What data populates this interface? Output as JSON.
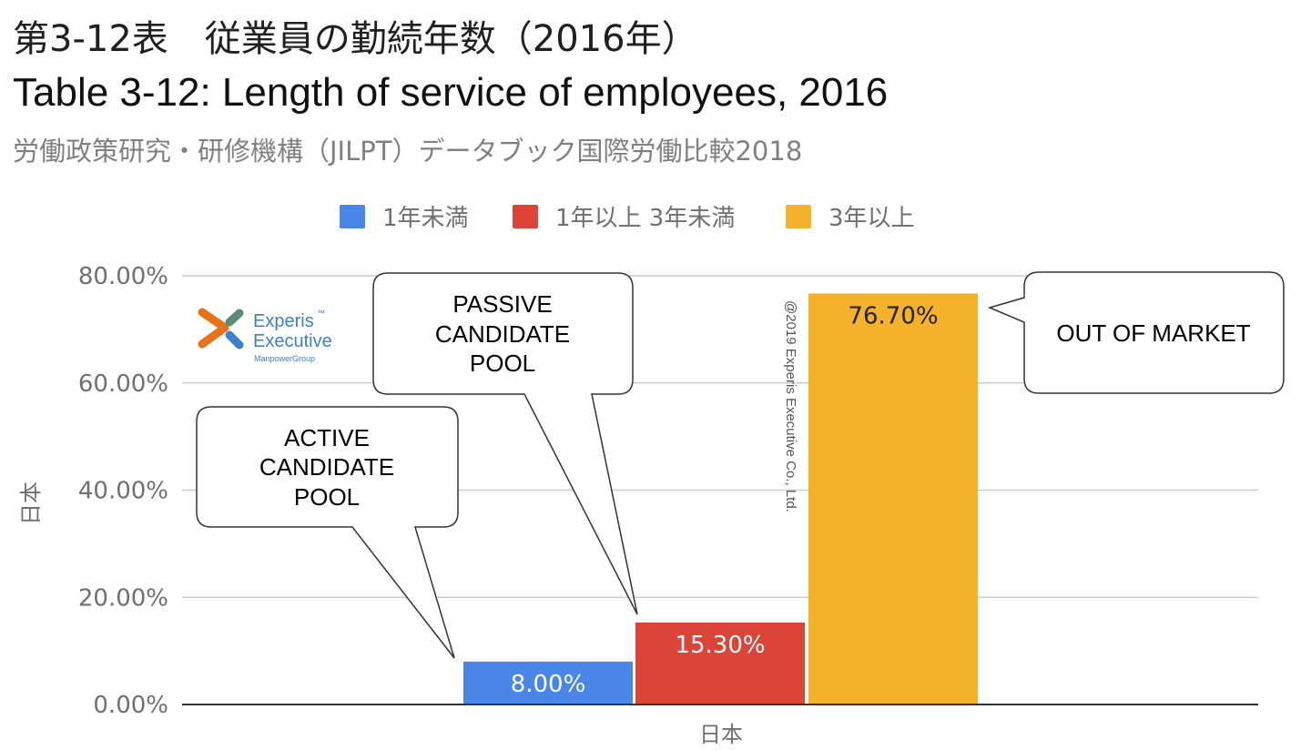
{
  "header": {
    "title_jp": "第3-12表　従業員の勤続年数（2016年）",
    "title_en": "Table 3-12: Length of service of employees, 2016",
    "subtitle": "労働政策研究・研修機構（JILPT）データブック国際労働比較2018"
  },
  "colors": {
    "series": [
      "#4a86e8",
      "#db4437",
      "#f4b22a"
    ],
    "grid": "#cccccc",
    "axis_text": "#707070",
    "label_light": "#ffffff",
    "label_dark": "#222222",
    "logo_orange": "#e8711c",
    "logo_teal": "#5b8c78",
    "logo_blue": "#3f7ec9"
  },
  "chart_data": {
    "type": "bar",
    "categories": [
      "日本"
    ],
    "series": [
      {
        "name": "1年未満",
        "values": [
          8.0
        ],
        "label": "8.00%"
      },
      {
        "name": "1年以上 3年未満",
        "values": [
          15.3
        ],
        "label": "15.30%"
      },
      {
        "name": "3年以上",
        "values": [
          76.7
        ],
        "label": "76.70%"
      }
    ],
    "ylim": [
      0,
      80
    ],
    "yticks": [
      0,
      20,
      40,
      60,
      80
    ],
    "ytick_labels": [
      "0.00%",
      "20.00%",
      "40.00%",
      "60.00%",
      "80.00%"
    ],
    "xlabel": "日本",
    "ylabel": "日本",
    "legend_position": "top",
    "grid": true,
    "annotations": {
      "active": [
        "ACTIVE",
        "CANDIDATE",
        "POOL"
      ],
      "passive": [
        "PASSIVE",
        "CANDIDATE",
        "POOL"
      ],
      "out": "OUT OF MARKET"
    },
    "watermark": "@2019 Experis Executive Co., Ltd.",
    "logo": {
      "name": "Experis",
      "tm": "™",
      "line2": "Executive",
      "line3": "ManpowerGroup"
    }
  }
}
